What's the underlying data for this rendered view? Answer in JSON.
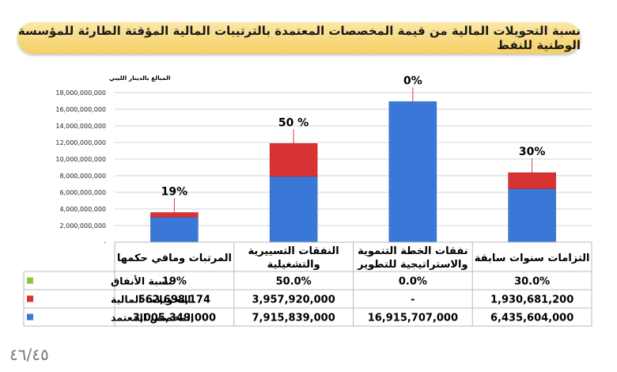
{
  "chart_data": {
    "type": "bar",
    "stacked": true,
    "title": "نسبة التحويلات المالية من قيمة المخصصات المعتمدة بالترتيبات المالية المؤقتة الطارئة للمؤسسة الوطنية للنفط",
    "ylabel": "المبالغ بالدينار الليبي",
    "ylim": [
      0,
      18000000000
    ],
    "yticks": [
      "-",
      "2,000,000,000",
      "4,000,000,000",
      "6,000,000,000",
      "8,000,000,000",
      "10,000,000,000",
      "12,000,000,000",
      "14,000,000,000",
      "16,000,000,000",
      "18,000,000,000"
    ],
    "grid": true,
    "categories": [
      [
        "المرتبات ومافي حكمها"
      ],
      [
        "النفقات التسييرية",
        "والتشغيلية"
      ],
      [
        "نفقات الخطة التنموية",
        "والاستراتيجية للتطوير"
      ],
      [
        "التزامات سنوات سابقة"
      ]
    ],
    "bar_labels": [
      "19%",
      "50 %",
      "0%",
      "30%"
    ],
    "series": [
      {
        "name": "المخصص المعتمد",
        "values": [
          3005349000,
          7915839000,
          16915707000,
          6435604000
        ],
        "display": [
          "3,005,349,000",
          "7,915,839,000",
          "16,915,707,000",
          "6,435,604,000"
        ],
        "color": "#3a78d8"
      },
      {
        "name": "التحويلات المالية",
        "values": [
          562698174,
          3957920000,
          0,
          1930681200
        ],
        "display": [
          "562,698,174",
          "3,957,920,000",
          "-",
          "1,930,681,200"
        ],
        "color": "#d93232"
      },
      {
        "name": "نسبة الأنفاق",
        "values": [
          19,
          50,
          0,
          30
        ],
        "display": [
          "19%",
          "50.0%",
          "0.0%",
          "30.0%"
        ],
        "color": "#8ec63f"
      }
    ]
  },
  "footer": {
    "page_number": "٤٦/٤٥"
  }
}
